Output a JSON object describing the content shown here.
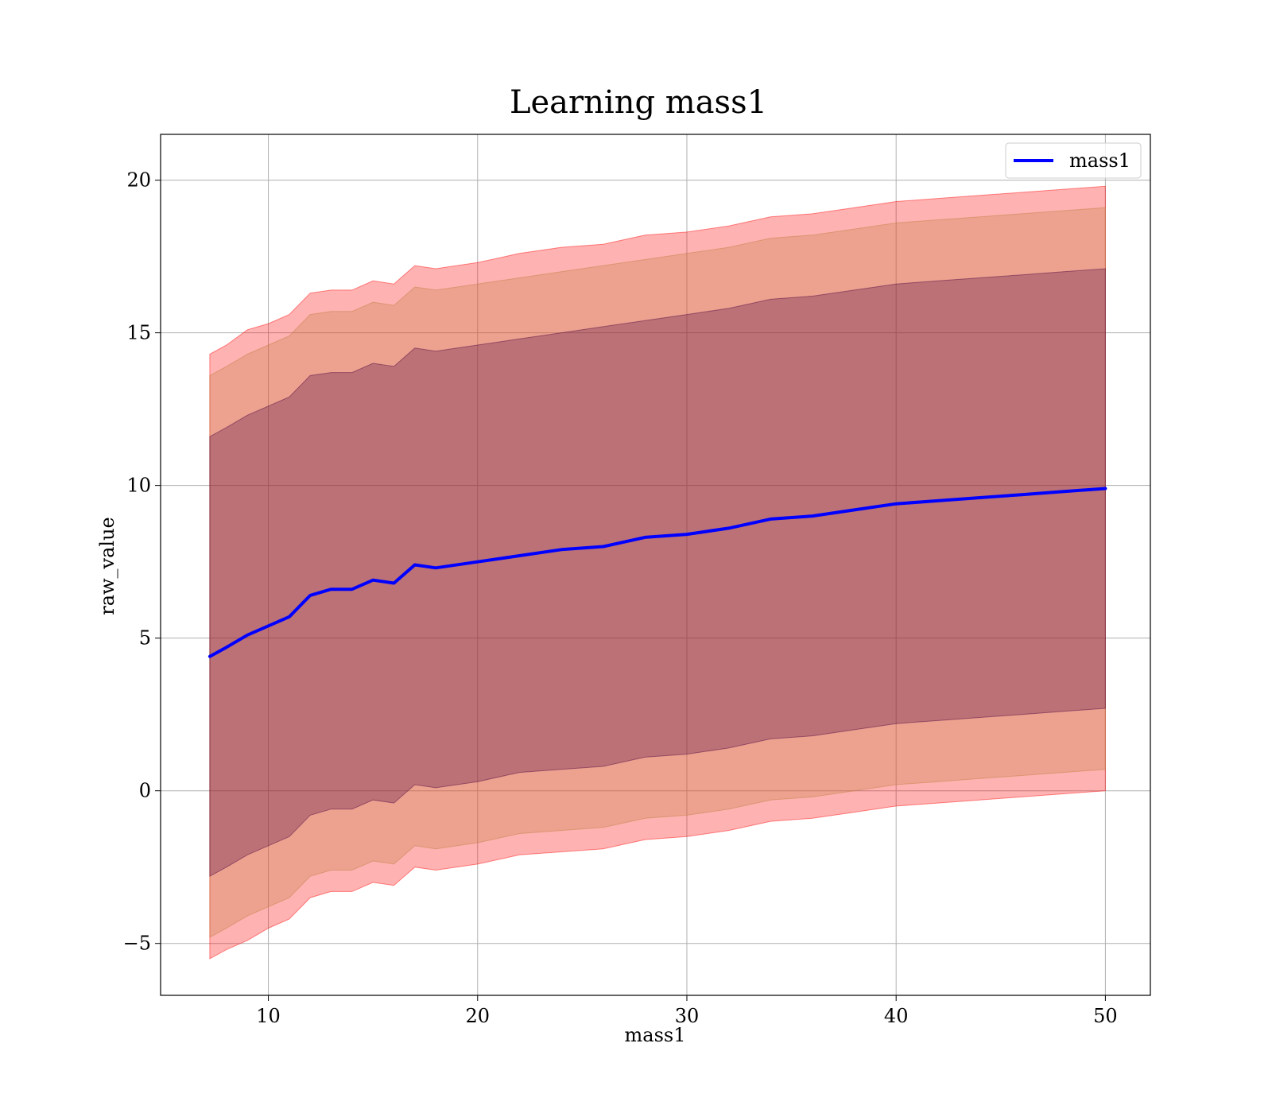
{
  "chart_data": {
    "type": "area",
    "title": "Learning mass1",
    "xlabel": "mass1",
    "ylabel": "raw_value",
    "xlim": [
      4.85,
      52.15
    ],
    "ylim": [
      -6.7,
      21.5
    ],
    "xticks": [
      10,
      20,
      30,
      40,
      50
    ],
    "yticks": [
      -5,
      0,
      5,
      10,
      15,
      20
    ],
    "xtick_labels": [
      "10",
      "20",
      "30",
      "40",
      "50"
    ],
    "ytick_labels": [
      "−5",
      "0",
      "5",
      "10",
      "15",
      "20"
    ],
    "grid": true,
    "legend": {
      "placement": "top-right",
      "entries": [
        "mass1"
      ]
    },
    "x": [
      7.2,
      8,
      9,
      10,
      11,
      12,
      13,
      14,
      15,
      16,
      17,
      18,
      20,
      22,
      24,
      26,
      28,
      30,
      32,
      34,
      36,
      38,
      40,
      42,
      44,
      46,
      48,
      50
    ],
    "series": [
      {
        "name": "mass1",
        "role": "line",
        "color": "#0000ff",
        "values": [
          4.4,
          4.7,
          5.1,
          5.4,
          5.7,
          6.4,
          6.6,
          6.6,
          6.9,
          6.8,
          7.4,
          7.3,
          7.5,
          7.7,
          7.9,
          8.0,
          8.3,
          8.4,
          8.6,
          8.9,
          9.0,
          9.2,
          9.4,
          9.5,
          9.6,
          9.7,
          9.8,
          9.9
        ]
      },
      {
        "role": "band",
        "color": "#ff0000",
        "alpha": 0.3,
        "upper": [
          14.3,
          14.6,
          15.1,
          15.3,
          15.6,
          16.3,
          16.4,
          16.4,
          16.7,
          16.6,
          17.2,
          17.1,
          17.3,
          17.6,
          17.8,
          17.9,
          18.2,
          18.3,
          18.5,
          18.8,
          18.9,
          19.1,
          19.3,
          19.4,
          19.5,
          19.6,
          19.7,
          19.8
        ],
        "lower": [
          -5.5,
          -5.2,
          -4.9,
          -4.5,
          -4.2,
          -3.5,
          -3.3,
          -3.3,
          -3.0,
          -3.1,
          -2.5,
          -2.6,
          -2.4,
          -2.1,
          -2.0,
          -1.9,
          -1.6,
          -1.5,
          -1.3,
          -1.0,
          -0.9,
          -0.7,
          -0.5,
          -0.4,
          -0.3,
          -0.2,
          -0.1,
          0.0
        ]
      },
      {
        "role": "band",
        "color": "#bf7f3f",
        "alpha": 0.3,
        "upper": [
          13.6,
          13.9,
          14.3,
          14.6,
          14.9,
          15.6,
          15.7,
          15.7,
          16.0,
          15.9,
          16.5,
          16.4,
          16.6,
          16.8,
          17.0,
          17.2,
          17.4,
          17.6,
          17.8,
          18.1,
          18.2,
          18.4,
          18.6,
          18.7,
          18.8,
          18.9,
          19.0,
          19.1
        ],
        "lower": [
          -4.8,
          -4.5,
          -4.1,
          -3.8,
          -3.5,
          -2.8,
          -2.6,
          -2.6,
          -2.3,
          -2.4,
          -1.8,
          -1.9,
          -1.7,
          -1.4,
          -1.3,
          -1.2,
          -0.9,
          -0.8,
          -0.6,
          -0.3,
          -0.2,
          0.0,
          0.2,
          0.3,
          0.4,
          0.5,
          0.6,
          0.7
        ]
      },
      {
        "role": "band",
        "color": "#4c003f",
        "alpha": 0.3,
        "upper": [
          11.6,
          11.9,
          12.3,
          12.6,
          12.9,
          13.6,
          13.7,
          13.7,
          14.0,
          13.9,
          14.5,
          14.4,
          14.6,
          14.8,
          15.0,
          15.2,
          15.4,
          15.6,
          15.8,
          16.1,
          16.2,
          16.4,
          16.6,
          16.7,
          16.8,
          16.9,
          17.0,
          17.1
        ],
        "lower": [
          -2.8,
          -2.5,
          -2.1,
          -1.8,
          -1.5,
          -0.8,
          -0.6,
          -0.6,
          -0.3,
          -0.4,
          0.2,
          0.1,
          0.3,
          0.6,
          0.7,
          0.8,
          1.1,
          1.2,
          1.4,
          1.7,
          1.8,
          2.0,
          2.2,
          2.3,
          2.4,
          2.5,
          2.6,
          2.7
        ]
      }
    ]
  }
}
